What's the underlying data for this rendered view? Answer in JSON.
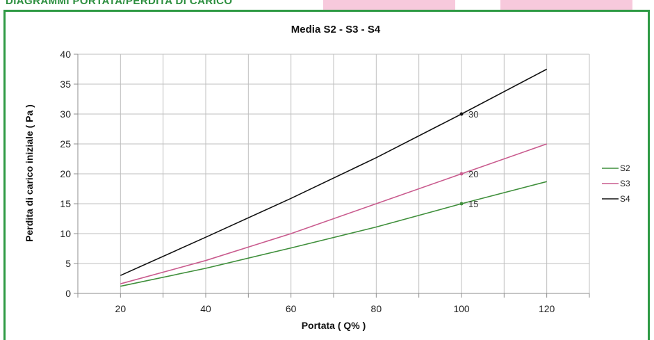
{
  "header": {
    "title": "DIAGRAMMI PORTATA/PERDITA DI CARICO"
  },
  "colors": {
    "frame": "#2e9a44",
    "title_green": "#2c8f3f",
    "pink_block": "#f7c9dc"
  },
  "chart_data": {
    "type": "line",
    "title": "Media S2 - S3 - S4",
    "xlabel": "Portata ( Q% )",
    "ylabel": "Perdita di carico iniziale ( Pa )",
    "xlim": [
      10,
      130
    ],
    "ylim": [
      0,
      40
    ],
    "x_ticks": [
      20,
      40,
      60,
      80,
      100,
      120
    ],
    "x_grid": [
      10,
      20,
      30,
      40,
      50,
      60,
      70,
      80,
      90,
      100,
      110,
      120,
      130
    ],
    "y_ticks": [
      0,
      5,
      10,
      15,
      20,
      25,
      30,
      35,
      40
    ],
    "grid": true,
    "legend": "right",
    "series": [
      {
        "name": "S2",
        "color": "#3f8f3b",
        "points": [
          [
            20,
            1.2
          ],
          [
            40,
            4.2
          ],
          [
            60,
            7.6
          ],
          [
            80,
            11.1
          ],
          [
            100,
            15
          ],
          [
            120,
            18.7
          ]
        ]
      },
      {
        "name": "S3",
        "color": "#c95b8e",
        "points": [
          [
            20,
            1.6
          ],
          [
            40,
            5.5
          ],
          [
            60,
            10
          ],
          [
            80,
            15
          ],
          [
            100,
            20
          ],
          [
            120,
            25
          ]
        ]
      },
      {
        "name": "S4",
        "color": "#111111",
        "points": [
          [
            20,
            3
          ],
          [
            40,
            9.4
          ],
          [
            60,
            15.9
          ],
          [
            80,
            22.7
          ],
          [
            100,
            30
          ],
          [
            120,
            37.5
          ]
        ]
      }
    ],
    "annotations": [
      {
        "series": "S4",
        "x": 100,
        "y": 30,
        "label": "30"
      },
      {
        "series": "S3",
        "x": 100,
        "y": 20,
        "label": "20"
      },
      {
        "series": "S2",
        "x": 100,
        "y": 15,
        "label": "15"
      }
    ]
  }
}
